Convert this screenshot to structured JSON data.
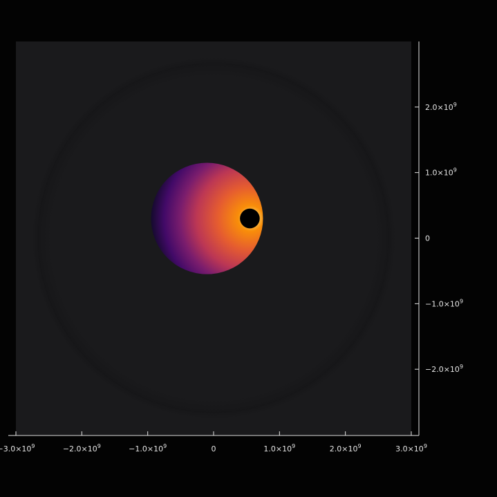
{
  "chart_data": {
    "type": "heatmap",
    "title": "",
    "xlabel": "",
    "ylabel": "",
    "xlim": [
      -3000000000.0,
      3000000000.0
    ],
    "ylim": [
      -3000000000.0,
      3000000000.0
    ],
    "x_ticks": [
      {
        "value": -3000000000.0,
        "mantissa": "−3.0×10",
        "exp": "9"
      },
      {
        "value": -2000000000.0,
        "mantissa": "−2.0×10",
        "exp": "9"
      },
      {
        "value": -1000000000.0,
        "mantissa": "−1.0×10",
        "exp": "9"
      },
      {
        "value": 0,
        "mantissa": "0",
        "exp": ""
      },
      {
        "value": 1000000000.0,
        "mantissa": "1.0×10",
        "exp": "9"
      },
      {
        "value": 2000000000.0,
        "mantissa": "2.0×10",
        "exp": "9"
      },
      {
        "value": 3000000000.0,
        "mantissa": "3.0×10",
        "exp": "9"
      }
    ],
    "y_ticks": [
      {
        "value": 2000000000.0,
        "mantissa": "2.0×10",
        "exp": "9"
      },
      {
        "value": 1000000000.0,
        "mantissa": "1.0×10",
        "exp": "9"
      },
      {
        "value": 0,
        "mantissa": "0",
        "exp": ""
      },
      {
        "value": -1000000000.0,
        "mantissa": "−1.0×10",
        "exp": "9"
      },
      {
        "value": -2000000000.0,
        "mantissa": "−2.0×10",
        "exp": "9"
      }
    ],
    "colormap": "inferno",
    "background_color": "#1a1a1c",
    "features": {
      "glow_center": [
        -100000000.0,
        300000000.0
      ],
      "glow_radius": 850000000.0,
      "hot_spot_center": [
        450000000.0,
        300000000.0
      ],
      "occluder_center": [
        550000000.0,
        300000000.0
      ],
      "occluder_radius": 150000000.0
    },
    "grid": false,
    "legend": "none"
  }
}
